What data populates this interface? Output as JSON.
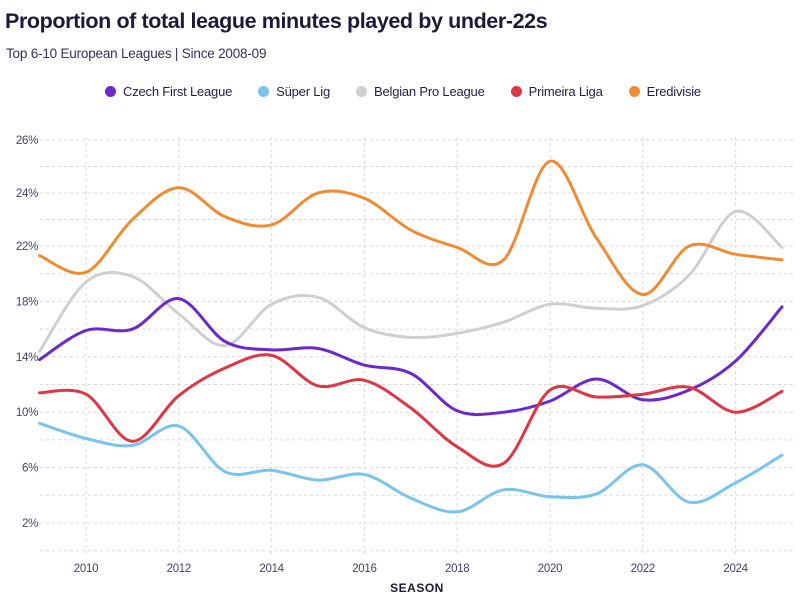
{
  "title": "Proportion of total league minutes played by under-22s",
  "subtitle": "Top 6-10 European Leagues | Since 2008-09",
  "colors": {
    "background": "#ffffff",
    "title_text": "#1d1939",
    "axis_text": "#454369",
    "gridline": "#d8d8d8"
  },
  "chart_data": {
    "type": "line",
    "title": "Proportion of total league minutes played by under-22s",
    "subtitle": "Top 6-10 European Leagues | Since 2008-09",
    "xlabel": "SEASON",
    "ylabel": "",
    "x": [
      2009,
      2010,
      2011,
      2012,
      2013,
      2014,
      2015,
      2016,
      2017,
      2018,
      2019,
      2020,
      2021,
      2022,
      2023,
      2024,
      2025
    ],
    "x_note": "each point is a season, first season 2008-09 plotted at 2009, last season 2024-25 at 2025",
    "x_ticks": [
      "2010",
      "2012",
      "2014",
      "2016",
      "2018",
      "2020",
      "2022",
      "2024"
    ],
    "y_ticks": [
      {
        "value": 26,
        "label": "26%"
      },
      {
        "value": 24,
        "label": "24%"
      },
      {
        "value": 22,
        "label": "22%"
      },
      {
        "value": 18,
        "label": "18%"
      },
      {
        "value": 14,
        "label": "14%"
      },
      {
        "value": 10,
        "label": "10%"
      },
      {
        "value": 6,
        "label": "6%"
      },
      {
        "value": 2,
        "label": "2%"
      }
    ],
    "y_axis_note": "dashed gridlines at every 2% from 0-22% and every 1% from 22-26%, equally spaced in pixels (non-linear above 22%)",
    "grid": "dashed horizontal lines plus vertical lines at even years",
    "legend_position": "top-center",
    "series": [
      {
        "name": "Czech First League",
        "color": "#6c28c8",
        "values": [
          13.8,
          15.9,
          16.0,
          18.2,
          15.1,
          14.5,
          14.6,
          13.4,
          12.8,
          10.1,
          10.0,
          10.8,
          12.4,
          10.9,
          11.6,
          13.7,
          17.6
        ]
      },
      {
        "name": "Süper Lig",
        "color": "#79c3ec",
        "values": [
          9.2,
          8.1,
          7.6,
          9.0,
          5.7,
          5.8,
          5.1,
          5.5,
          3.8,
          2.8,
          4.4,
          3.9,
          4.1,
          6.2,
          3.5,
          4.9,
          6.9
        ]
      },
      {
        "name": "Belgian Pro League",
        "color": "#cfcfcf",
        "values": [
          14.4,
          19.4,
          19.8,
          17.1,
          14.8,
          17.8,
          18.3,
          16.1,
          15.4,
          15.7,
          16.5,
          17.8,
          17.5,
          17.7,
          19.9,
          23.3,
          21.9
        ]
      },
      {
        "name": "Primeira Liga",
        "color": "#dd3644",
        "values": [
          11.4,
          11.3,
          7.9,
          11.2,
          13.2,
          14.1,
          11.9,
          12.3,
          10.3,
          7.5,
          6.3,
          11.6,
          11.1,
          11.3,
          11.8,
          10.0,
          11.5
        ]
      },
      {
        "name": "Eredivisie",
        "color": "#ef8c33",
        "values": [
          21.3,
          20.1,
          23.0,
          24.2,
          23.1,
          22.8,
          24.0,
          23.8,
          22.6,
          21.9,
          21.0,
          25.2,
          22.3,
          18.5,
          22.0,
          21.4,
          21.0
        ]
      }
    ]
  }
}
